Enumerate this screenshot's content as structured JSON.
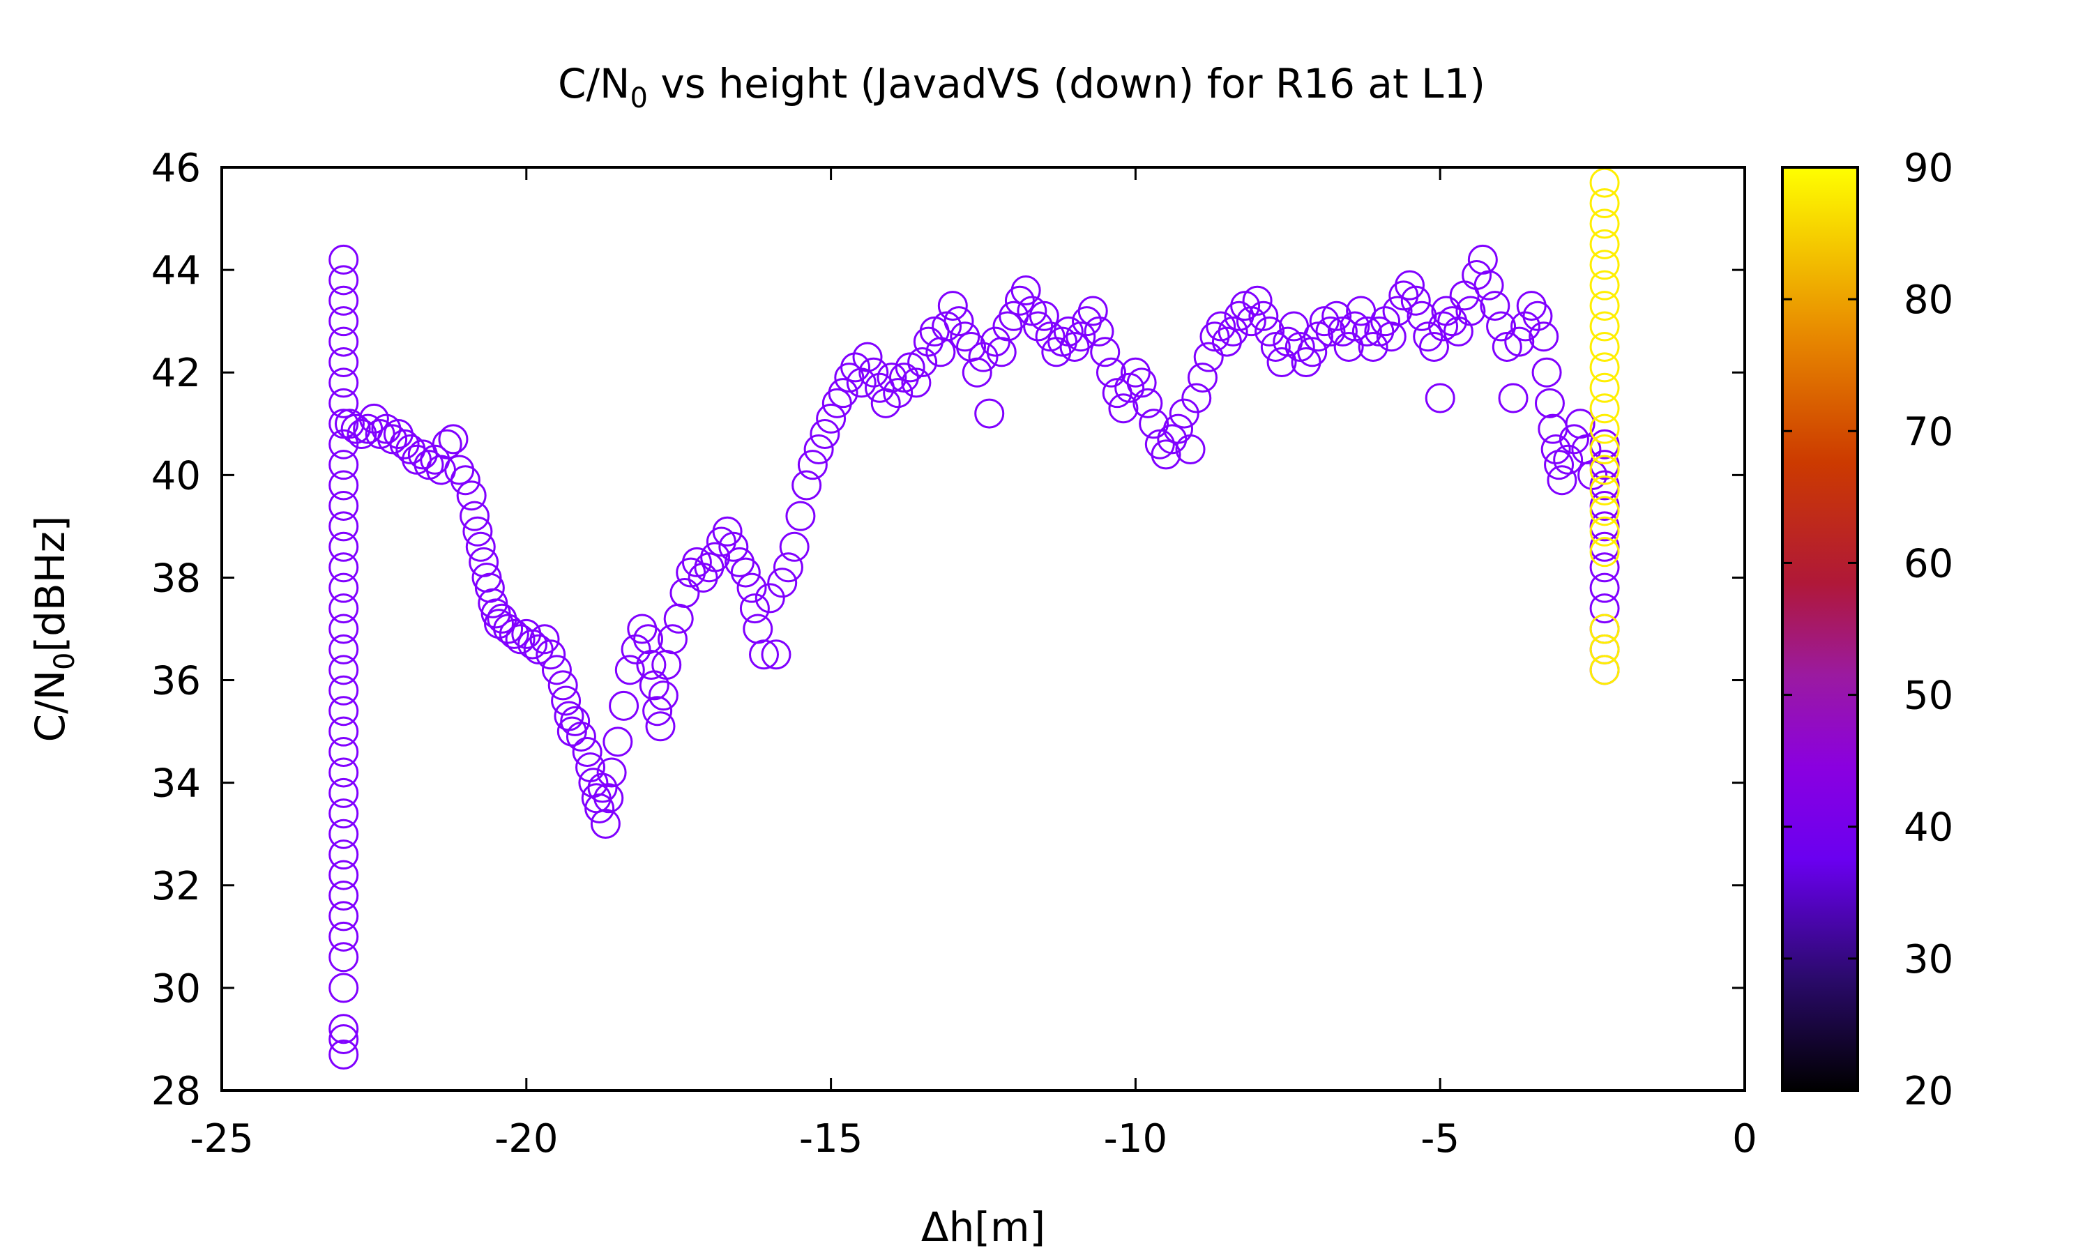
{
  "chart_data": {
    "type": "scatter",
    "title_main": "C/N",
    "title_sub": "0",
    "title_rest": " vs height (JavadVS (down) for R16 at L1)",
    "xlabel": "Δh[m]",
    "ylabel_main": "C/N",
    "ylabel_sub": "0",
    "ylabel_rest": "[dBHz]",
    "xlim": [
      -25,
      0
    ],
    "ylim": [
      28,
      46
    ],
    "xticks": [
      -25,
      -20,
      -15,
      -10,
      -5,
      0
    ],
    "yticks": [
      28,
      30,
      32,
      34,
      36,
      38,
      40,
      42,
      44,
      46
    ],
    "marker": "open-circle",
    "colorbar": {
      "range": [
        20,
        90
      ],
      "ticks": [
        20,
        30,
        40,
        50,
        60,
        70,
        80,
        90
      ],
      "palette": "black-blue-violet-red-orange-yellow"
    },
    "series": [
      {
        "colorbar_value": 36,
        "color": "#8000ff",
        "points": [
          [
            -23.0,
            44.2
          ],
          [
            -23.0,
            43.8
          ],
          [
            -23.0,
            43.4
          ],
          [
            -23.0,
            43.0
          ],
          [
            -23.0,
            42.6
          ],
          [
            -23.0,
            42.2
          ],
          [
            -23.0,
            41.8
          ],
          [
            -23.0,
            41.4
          ],
          [
            -23.0,
            41.0
          ],
          [
            -23.0,
            40.6
          ],
          [
            -23.0,
            40.2
          ],
          [
            -23.0,
            39.8
          ],
          [
            -23.0,
            39.4
          ],
          [
            -23.0,
            39.0
          ],
          [
            -23.0,
            38.6
          ],
          [
            -23.0,
            38.2
          ],
          [
            -23.0,
            37.8
          ],
          [
            -23.0,
            37.4
          ],
          [
            -23.0,
            37.0
          ],
          [
            -23.0,
            36.6
          ],
          [
            -23.0,
            36.2
          ],
          [
            -23.0,
            35.8
          ],
          [
            -23.0,
            35.4
          ],
          [
            -23.0,
            35.0
          ],
          [
            -23.0,
            34.6
          ],
          [
            -23.0,
            34.2
          ],
          [
            -23.0,
            33.8
          ],
          [
            -23.0,
            33.4
          ],
          [
            -23.0,
            33.0
          ],
          [
            -23.0,
            32.6
          ],
          [
            -23.0,
            32.2
          ],
          [
            -23.0,
            31.8
          ],
          [
            -23.0,
            31.4
          ],
          [
            -23.0,
            31.0
          ],
          [
            -23.0,
            30.6
          ],
          [
            -23.0,
            30.0
          ],
          [
            -23.0,
            29.2
          ],
          [
            -23.0,
            29.0
          ],
          [
            -23.0,
            28.7
          ],
          [
            -22.9,
            41.0
          ],
          [
            -22.8,
            40.9
          ],
          [
            -22.7,
            40.8
          ],
          [
            -22.6,
            40.9
          ],
          [
            -22.5,
            41.1
          ],
          [
            -22.4,
            40.8
          ],
          [
            -22.3,
            40.9
          ],
          [
            -22.2,
            40.7
          ],
          [
            -22.1,
            40.8
          ],
          [
            -22.0,
            40.6
          ],
          [
            -21.9,
            40.5
          ],
          [
            -21.8,
            40.3
          ],
          [
            -21.7,
            40.4
          ],
          [
            -21.6,
            40.2
          ],
          [
            -21.5,
            40.3
          ],
          [
            -21.4,
            40.1
          ],
          [
            -21.3,
            40.6
          ],
          [
            -21.2,
            40.7
          ],
          [
            -21.1,
            40.1
          ],
          [
            -21.0,
            39.9
          ],
          [
            -20.9,
            39.6
          ],
          [
            -20.85,
            39.2
          ],
          [
            -20.8,
            38.9
          ],
          [
            -20.75,
            38.6
          ],
          [
            -20.7,
            38.3
          ],
          [
            -20.65,
            38.0
          ],
          [
            -20.6,
            37.8
          ],
          [
            -20.55,
            37.5
          ],
          [
            -20.5,
            37.3
          ],
          [
            -20.45,
            37.1
          ],
          [
            -20.4,
            37.2
          ],
          [
            -20.3,
            37.0
          ],
          [
            -20.2,
            36.9
          ],
          [
            -20.1,
            36.8
          ],
          [
            -20.0,
            36.9
          ],
          [
            -19.9,
            36.7
          ],
          [
            -19.8,
            36.6
          ],
          [
            -19.7,
            36.8
          ],
          [
            -19.6,
            36.5
          ],
          [
            -19.5,
            36.2
          ],
          [
            -19.4,
            35.9
          ],
          [
            -19.35,
            35.6
          ],
          [
            -19.3,
            35.3
          ],
          [
            -19.25,
            35.0
          ],
          [
            -19.2,
            35.2
          ],
          [
            -19.1,
            34.9
          ],
          [
            -19.0,
            34.6
          ],
          [
            -18.95,
            34.3
          ],
          [
            -18.9,
            34.0
          ],
          [
            -18.85,
            33.7
          ],
          [
            -18.8,
            33.5
          ],
          [
            -18.75,
            33.9
          ],
          [
            -18.7,
            33.2
          ],
          [
            -18.65,
            33.7
          ],
          [
            -18.6,
            34.2
          ],
          [
            -18.5,
            34.8
          ],
          [
            -18.4,
            35.5
          ],
          [
            -18.3,
            36.2
          ],
          [
            -18.2,
            36.6
          ],
          [
            -18.1,
            37.0
          ],
          [
            -18.0,
            36.8
          ],
          [
            -17.95,
            36.3
          ],
          [
            -17.9,
            35.9
          ],
          [
            -17.85,
            35.4
          ],
          [
            -17.8,
            35.1
          ],
          [
            -17.75,
            35.7
          ],
          [
            -17.7,
            36.3
          ],
          [
            -17.6,
            36.8
          ],
          [
            -17.5,
            37.2
          ],
          [
            -17.4,
            37.7
          ],
          [
            -17.3,
            38.1
          ],
          [
            -17.2,
            38.3
          ],
          [
            -17.1,
            38.0
          ],
          [
            -17.0,
            38.2
          ],
          [
            -16.9,
            38.4
          ],
          [
            -16.8,
            38.7
          ],
          [
            -16.7,
            38.9
          ],
          [
            -16.6,
            38.6
          ],
          [
            -16.5,
            38.3
          ],
          [
            -16.4,
            38.1
          ],
          [
            -16.3,
            37.8
          ],
          [
            -16.25,
            37.4
          ],
          [
            -16.2,
            37.0
          ],
          [
            -16.1,
            36.5
          ],
          [
            -16.0,
            37.6
          ],
          [
            -15.9,
            36.5
          ],
          [
            -15.8,
            37.9
          ],
          [
            -15.7,
            38.2
          ],
          [
            -15.6,
            38.6
          ],
          [
            -15.5,
            39.2
          ],
          [
            -15.4,
            39.8
          ],
          [
            -15.3,
            40.2
          ],
          [
            -15.2,
            40.5
          ],
          [
            -15.1,
            40.8
          ],
          [
            -15.0,
            41.1
          ],
          [
            -14.9,
            41.4
          ],
          [
            -14.8,
            41.6
          ],
          [
            -14.7,
            41.9
          ],
          [
            -14.6,
            42.1
          ],
          [
            -14.5,
            41.8
          ],
          [
            -14.4,
            42.3
          ],
          [
            -14.3,
            42.0
          ],
          [
            -14.2,
            41.7
          ],
          [
            -14.1,
            41.4
          ],
          [
            -14.0,
            41.9
          ],
          [
            -13.9,
            41.6
          ],
          [
            -13.8,
            41.9
          ],
          [
            -13.7,
            42.1
          ],
          [
            -13.6,
            41.8
          ],
          [
            -13.5,
            42.2
          ],
          [
            -13.4,
            42.6
          ],
          [
            -13.3,
            42.8
          ],
          [
            -13.2,
            42.4
          ],
          [
            -13.1,
            42.9
          ],
          [
            -13.0,
            43.3
          ],
          [
            -12.9,
            43.0
          ],
          [
            -12.8,
            42.7
          ],
          [
            -12.7,
            42.5
          ],
          [
            -12.6,
            42.0
          ],
          [
            -12.5,
            42.3
          ],
          [
            -12.4,
            41.2
          ],
          [
            -12.3,
            42.6
          ],
          [
            -12.2,
            42.4
          ],
          [
            -12.1,
            42.9
          ],
          [
            -12.0,
            43.1
          ],
          [
            -11.9,
            43.4
          ],
          [
            -11.8,
            43.6
          ],
          [
            -11.7,
            43.2
          ],
          [
            -11.6,
            42.9
          ],
          [
            -11.5,
            43.1
          ],
          [
            -11.4,
            42.7
          ],
          [
            -11.3,
            42.4
          ],
          [
            -11.2,
            42.6
          ],
          [
            -11.1,
            42.8
          ],
          [
            -11.0,
            42.5
          ],
          [
            -10.9,
            42.7
          ],
          [
            -10.8,
            43.0
          ],
          [
            -10.7,
            43.2
          ],
          [
            -10.6,
            42.8
          ],
          [
            -10.5,
            42.4
          ],
          [
            -10.4,
            42.0
          ],
          [
            -10.3,
            41.6
          ],
          [
            -10.2,
            41.3
          ],
          [
            -10.1,
            41.7
          ],
          [
            -10.0,
            42.0
          ],
          [
            -9.9,
            41.8
          ],
          [
            -9.8,
            41.4
          ],
          [
            -9.7,
            41.0
          ],
          [
            -9.6,
            40.6
          ],
          [
            -9.5,
            40.4
          ],
          [
            -9.4,
            40.7
          ],
          [
            -9.3,
            40.9
          ],
          [
            -9.2,
            41.2
          ],
          [
            -9.1,
            40.5
          ],
          [
            -9.0,
            41.5
          ],
          [
            -8.9,
            41.9
          ],
          [
            -8.8,
            42.3
          ],
          [
            -8.7,
            42.7
          ],
          [
            -8.6,
            42.9
          ],
          [
            -8.5,
            42.6
          ],
          [
            -8.4,
            42.8
          ],
          [
            -8.3,
            43.1
          ],
          [
            -8.2,
            43.3
          ],
          [
            -8.1,
            43.0
          ],
          [
            -8.0,
            43.4
          ],
          [
            -7.9,
            43.1
          ],
          [
            -7.8,
            42.8
          ],
          [
            -7.7,
            42.5
          ],
          [
            -7.6,
            42.2
          ],
          [
            -7.5,
            42.6
          ],
          [
            -7.4,
            42.9
          ],
          [
            -7.3,
            42.5
          ],
          [
            -7.2,
            42.2
          ],
          [
            -7.1,
            42.4
          ],
          [
            -7.0,
            42.7
          ],
          [
            -6.9,
            43.0
          ],
          [
            -6.8,
            42.8
          ],
          [
            -6.7,
            43.1
          ],
          [
            -6.6,
            42.8
          ],
          [
            -6.5,
            42.5
          ],
          [
            -6.4,
            42.9
          ],
          [
            -6.3,
            43.2
          ],
          [
            -6.2,
            42.8
          ],
          [
            -6.1,
            42.5
          ],
          [
            -6.0,
            42.8
          ],
          [
            -5.9,
            43.0
          ],
          [
            -5.8,
            42.7
          ],
          [
            -5.7,
            43.2
          ],
          [
            -5.6,
            43.5
          ],
          [
            -5.5,
            43.7
          ],
          [
            -5.4,
            43.4
          ],
          [
            -5.3,
            43.1
          ],
          [
            -5.2,
            42.7
          ],
          [
            -5.1,
            42.5
          ],
          [
            -5.0,
            41.5
          ],
          [
            -4.95,
            42.9
          ],
          [
            -4.9,
            43.2
          ],
          [
            -4.8,
            43.0
          ],
          [
            -4.7,
            42.8
          ],
          [
            -4.6,
            43.5
          ],
          [
            -4.5,
            43.2
          ],
          [
            -4.4,
            43.9
          ],
          [
            -4.3,
            44.2
          ],
          [
            -4.2,
            43.7
          ],
          [
            -4.1,
            43.3
          ],
          [
            -4.0,
            42.9
          ],
          [
            -3.9,
            42.5
          ],
          [
            -3.8,
            41.5
          ],
          [
            -3.7,
            42.6
          ],
          [
            -3.6,
            42.9
          ],
          [
            -3.5,
            43.3
          ],
          [
            -3.4,
            43.1
          ],
          [
            -3.3,
            42.7
          ],
          [
            -3.25,
            42.0
          ],
          [
            -3.2,
            41.4
          ],
          [
            -3.15,
            40.9
          ],
          [
            -3.1,
            40.5
          ],
          [
            -3.05,
            40.2
          ],
          [
            -3.0,
            39.9
          ],
          [
            -2.9,
            40.3
          ],
          [
            -2.8,
            40.7
          ],
          [
            -2.7,
            41.0
          ],
          [
            -2.6,
            40.5
          ],
          [
            -2.5,
            40.0
          ],
          [
            -2.3,
            40.6
          ],
          [
            -2.3,
            40.2
          ],
          [
            -2.3,
            39.8
          ],
          [
            -2.3,
            39.4
          ],
          [
            -2.3,
            39.0
          ],
          [
            -2.3,
            38.6
          ],
          [
            -2.3,
            38.2
          ],
          [
            -2.3,
            37.8
          ],
          [
            -2.3,
            37.4
          ],
          [
            -2.3,
            37.0
          ],
          [
            -2.3,
            36.6
          ],
          [
            -2.3,
            36.2
          ]
        ]
      },
      {
        "colorbar_value": 90,
        "color": "#ffee00",
        "points": [
          [
            -2.3,
            45.7
          ],
          [
            -2.3,
            45.3
          ],
          [
            -2.3,
            44.9
          ],
          [
            -2.3,
            44.5
          ],
          [
            -2.3,
            44.1
          ],
          [
            -2.3,
            43.7
          ],
          [
            -2.3,
            43.3
          ],
          [
            -2.3,
            42.9
          ],
          [
            -2.3,
            42.5
          ],
          [
            -2.3,
            42.1
          ],
          [
            -2.3,
            41.7
          ],
          [
            -2.3,
            41.3
          ],
          [
            -2.3,
            40.9
          ],
          [
            -2.3,
            40.5
          ],
          [
            -2.3,
            40.1
          ],
          [
            -2.3,
            39.7
          ],
          [
            -2.3,
            39.3
          ],
          [
            -2.3,
            38.9
          ],
          [
            -2.3,
            38.5
          ],
          [
            -2.3,
            37.0
          ],
          [
            -2.3,
            36.6
          ],
          [
            -2.3,
            36.2
          ]
        ]
      }
    ]
  }
}
